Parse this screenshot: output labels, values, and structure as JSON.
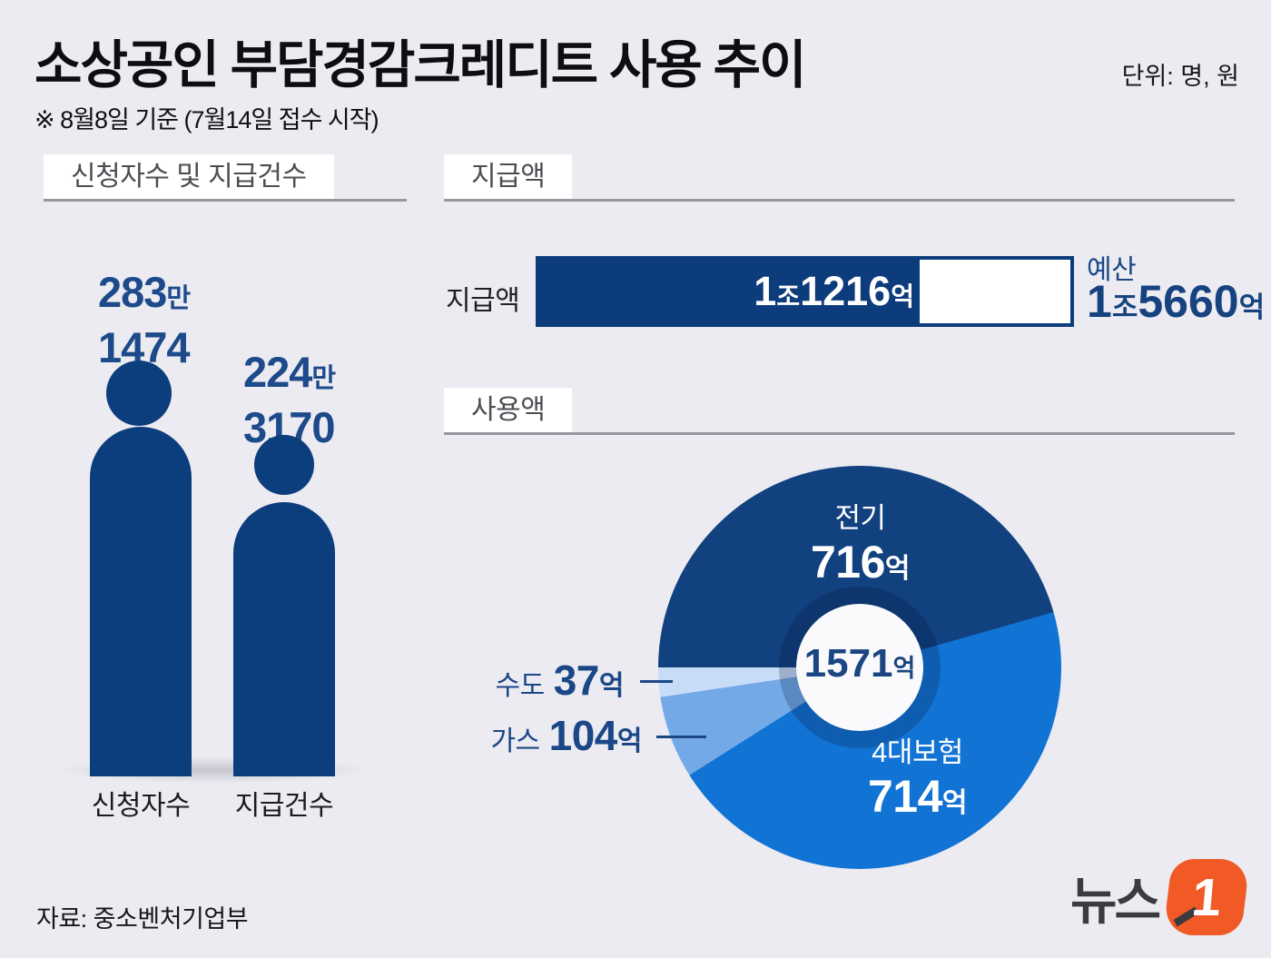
{
  "title": "소상공인 부담경감크레디트 사용 추이",
  "unit_note": "단위: 명, 원",
  "subtitle": "※ 8월8일 기준 (7월14일 접수 시작)",
  "source": "자료: 중소벤처기업부",
  "logo": {
    "text": "뉴스",
    "one": "1"
  },
  "colors": {
    "background": "#ebebf1",
    "navy": "#0c3d7c",
    "number_navy": "#1c4a8a",
    "electric": "#11417f",
    "insurance": "#1173d4",
    "gas": "#74a9e8",
    "water": "#c7dcf6",
    "logo_orange": "#f15a25",
    "header_gray": "#4d4d54"
  },
  "sections": {
    "applicants": {
      "header": "신청자수 및 지급건수",
      "figures": [
        {
          "label": "신청자수",
          "num": "283",
          "suffix": "만",
          "num2": "1474"
        },
        {
          "label": "지급건수",
          "num": "224",
          "suffix": "만",
          "num2": "3170"
        }
      ]
    },
    "payment": {
      "header": "지급액",
      "row_label": "지급액",
      "paid": {
        "n1": "1",
        "s1": "조",
        "n2": "1216",
        "s2": "억"
      },
      "budget_label": "예산",
      "budget": {
        "n1": "1",
        "s1": "조",
        "n2": "5660",
        "s2": "억"
      }
    },
    "usage": {
      "header": "사용액",
      "electric": {
        "cat": "전기",
        "num": "716",
        "suffix": "억"
      },
      "insurance": {
        "cat": "4대보험",
        "num": "714",
        "suffix": "억"
      },
      "water": {
        "cat": "수도",
        "num": "37",
        "suffix": "억"
      },
      "gas": {
        "cat": "가스",
        "num": "104",
        "suffix": "억"
      },
      "center": {
        "num": "1571",
        "suffix": "억"
      }
    }
  },
  "chart_data": [
    {
      "type": "bar",
      "variant": "pictogram-people",
      "title": "신청자수 및 지급건수",
      "categories": [
        "신청자수",
        "지급건수"
      ],
      "values": [
        2831474,
        2243170
      ],
      "value_labels": [
        "283만 1474",
        "224만 3170"
      ],
      "unit": "명"
    },
    {
      "type": "bar",
      "variant": "progress",
      "title": "지급액",
      "categories": [
        "지급액",
        "예산"
      ],
      "values": [
        11216,
        15660
      ],
      "value_labels": [
        "1조1216억",
        "1조5660억"
      ],
      "unit": "억 원",
      "fill_color": "#0c3c7b"
    },
    {
      "type": "pie",
      "variant": "donut",
      "title": "사용액",
      "center_value": 1571,
      "center_label": "1571억",
      "start_angle_deg_from_top_cw": 270,
      "segments": [
        {
          "label": "전기",
          "value": 716,
          "color": "#11417f"
        },
        {
          "label": "4대보험",
          "value": 714,
          "color": "#1173d4"
        },
        {
          "label": "가스",
          "value": 104,
          "color": "#74a9e8"
        },
        {
          "label": "수도",
          "value": 37,
          "color": "#c7dcf6"
        }
      ],
      "unit": "억 원"
    }
  ]
}
